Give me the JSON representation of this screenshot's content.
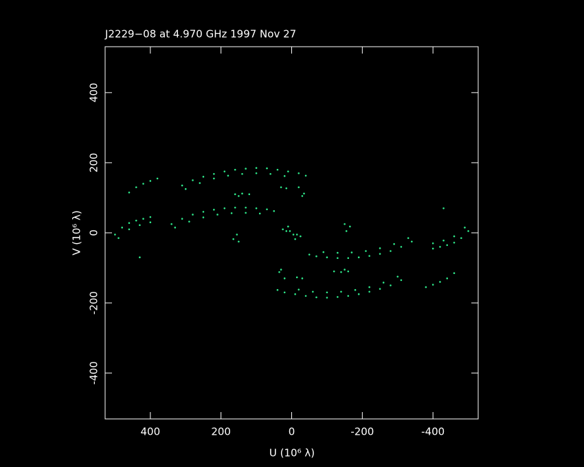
{
  "chart_data": {
    "type": "scatter",
    "title": "J2229−08 at 4.970 GHz 1997 Nov 27",
    "x_label": "U (10⁶ λ)",
    "y_label": "V (10⁶ λ)",
    "color": "#2ee88a",
    "xlim": [
      528,
      -528
    ],
    "ylim": [
      -531,
      531
    ],
    "xticks": [
      400,
      200,
      0,
      -200,
      -400
    ],
    "yticks": [
      -400,
      -200,
      0,
      200,
      400
    ],
    "x": [
      310,
      280,
      250,
      220,
      190,
      160,
      130,
      100,
      70,
      40,
      10,
      -20,
      -40,
      300,
      260,
      220,
      180,
      140,
      100,
      60,
      20,
      340,
      310,
      280,
      250,
      220,
      190,
      160,
      130,
      100,
      70,
      50,
      330,
      290,
      250,
      210,
      170,
      130,
      90,
      460,
      440,
      420,
      400,
      380,
      500,
      480,
      460,
      440,
      420,
      400,
      490,
      460,
      430,
      400,
      160,
      150,
      140,
      120,
      30,
      15,
      -20,
      -35,
      -30,
      155,
      165,
      150,
      25,
      5,
      -15,
      -10,
      430,
      -310,
      -280,
      -250,
      -220,
      -190,
      -160,
      -130,
      -100,
      -70,
      -40,
      -10,
      20,
      40,
      -300,
      -260,
      -220,
      -180,
      -140,
      -100,
      -60,
      -20,
      -340,
      -310,
      -280,
      -250,
      -220,
      -190,
      -160,
      -130,
      -100,
      -70,
      -50,
      -330,
      -290,
      -250,
      -210,
      -170,
      -130,
      -90,
      -460,
      -440,
      -420,
      -400,
      -380,
      -500,
      -480,
      -460,
      -440,
      -420,
      -400,
      -490,
      -460,
      -430,
      -400,
      -160,
      -150,
      -140,
      -120,
      -30,
      -15,
      20,
      35,
      30,
      -155,
      -165,
      -150,
      -25,
      -5,
      15,
      10,
      -430
    ],
    "values": [
      135,
      150,
      160,
      168,
      175,
      180,
      183,
      185,
      184,
      180,
      175,
      170,
      163,
      125,
      142,
      155,
      163,
      168,
      170,
      168,
      162,
      25,
      40,
      52,
      60,
      66,
      70,
      72,
      72,
      70,
      67,
      62,
      15,
      32,
      44,
      52,
      56,
      57,
      55,
      115,
      130,
      140,
      148,
      155,
      -5,
      15,
      28,
      35,
      40,
      45,
      -15,
      10,
      22,
      30,
      110,
      105,
      112,
      110,
      130,
      127,
      130,
      112,
      105,
      -5,
      -18,
      -25,
      10,
      5,
      -5,
      -18,
      -70,
      -135,
      -150,
      -160,
      -168,
      -175,
      -180,
      -183,
      -185,
      -184,
      -180,
      -175,
      -170,
      -163,
      -125,
      -142,
      -155,
      -163,
      -168,
      -170,
      -168,
      -162,
      -25,
      -40,
      -52,
      -60,
      -66,
      -70,
      -72,
      -72,
      -70,
      -67,
      -62,
      -15,
      -32,
      -44,
      -52,
      -56,
      -57,
      -55,
      -115,
      -130,
      -140,
      -148,
      -155,
      5,
      -15,
      -28,
      -35,
      -40,
      -45,
      15,
      -10,
      -22,
      -30,
      -110,
      -105,
      -112,
      -110,
      -130,
      -127,
      -130,
      -112,
      -105,
      5,
      18,
      25,
      -10,
      -5,
      5,
      18,
      70
    ]
  }
}
